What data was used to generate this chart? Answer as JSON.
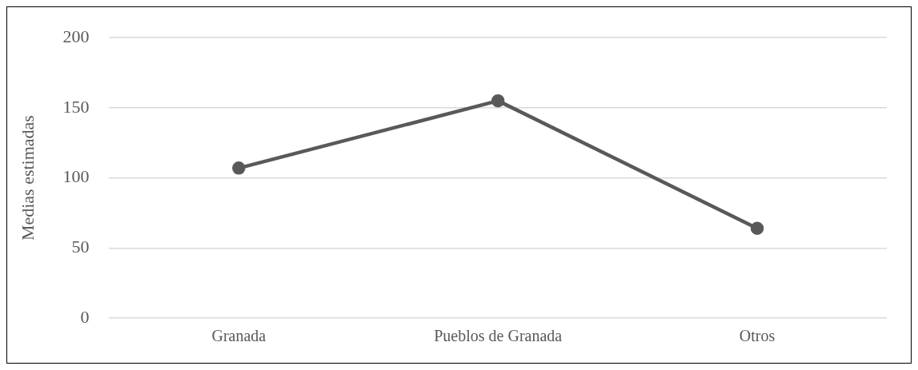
{
  "chart_data": {
    "type": "line",
    "ylabel": "Medias estimadas",
    "categories": [
      "Granada",
      "Pueblos de Granada",
      "Otros"
    ],
    "series": [
      {
        "color": "#595959",
        "values": [
          107,
          155,
          64
        ]
      }
    ],
    "ylim": [
      0,
      200
    ],
    "yticks": [
      0,
      50,
      100,
      150,
      200
    ],
    "grid": "y",
    "legend": false,
    "marker": "circle",
    "line_style": "solid"
  }
}
